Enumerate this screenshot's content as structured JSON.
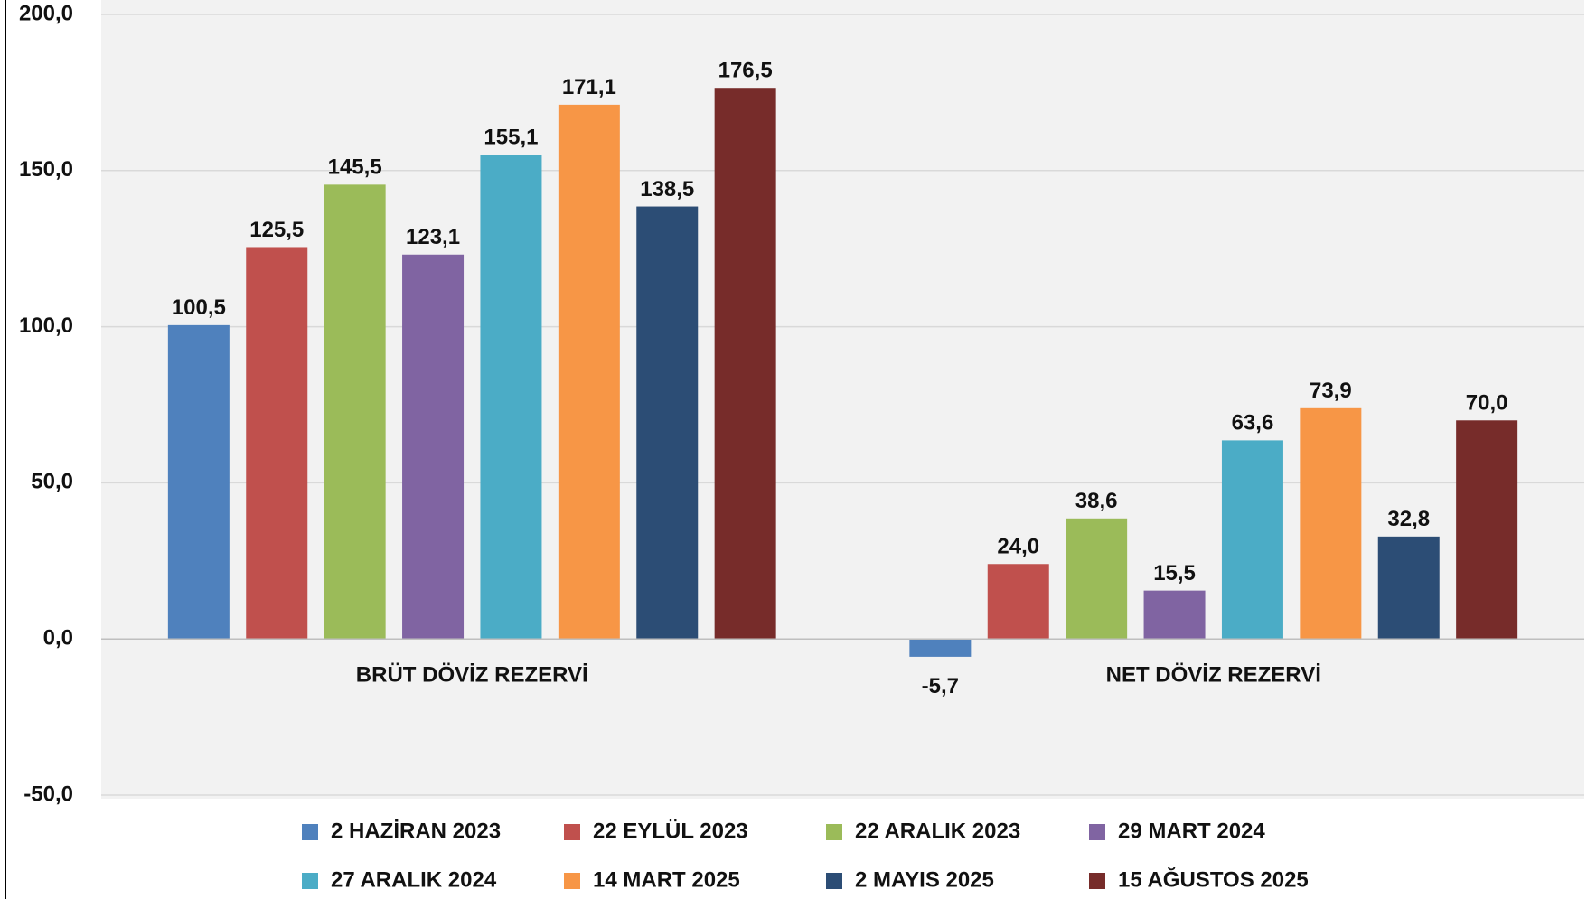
{
  "chart_data": {
    "type": "bar",
    "categories": [
      "BRÜT DÖVİZ REZERVİ",
      "NET DÖVİZ REZERVİ"
    ],
    "series": [
      {
        "name": "2 HAZİRAN 2023",
        "color": "#4f81bd",
        "values": [
          100.5,
          -5.7
        ],
        "value_labels": [
          "100,5",
          "-5,7"
        ]
      },
      {
        "name": "22 EYLÜL 2023",
        "color": "#c0504d",
        "values": [
          125.5,
          24.0
        ],
        "value_labels": [
          "125,5",
          "24,0"
        ]
      },
      {
        "name": "22 ARALIK 2023",
        "color": "#9bbb59",
        "values": [
          145.5,
          38.6
        ],
        "value_labels": [
          "145,5",
          "38,6"
        ]
      },
      {
        "name": "29 MART 2024",
        "color": "#8064a2",
        "values": [
          123.1,
          15.5
        ],
        "value_labels": [
          "123,1",
          "15,5"
        ]
      },
      {
        "name": "27 ARALIK 2024",
        "color": "#4bacc6",
        "values": [
          155.1,
          63.6
        ],
        "value_labels": [
          "155,1",
          "63,6"
        ]
      },
      {
        "name": "14 MART  2025",
        "color": "#f79646",
        "values": [
          171.1,
          73.9
        ],
        "value_labels": [
          "171,1",
          "73,9"
        ]
      },
      {
        "name": "2 MAYIS 2025",
        "color": "#2c4d75",
        "values": [
          138.5,
          32.8
        ],
        "value_labels": [
          "138,5",
          "32,8"
        ]
      },
      {
        "name": "15 AĞUSTOS  2025",
        "color": "#772c2a",
        "values": [
          176.5,
          70.0
        ],
        "value_labels": [
          "176,5",
          "70,0"
        ]
      }
    ],
    "ylim": [
      -50,
      200
    ],
    "yticks": [
      {
        "value": -50,
        "label": "-50,0"
      },
      {
        "value": 0,
        "label": "0,0"
      },
      {
        "value": 50,
        "label": "50,0"
      },
      {
        "value": 100,
        "label": "100,0"
      },
      {
        "value": 150,
        "label": "150,0"
      },
      {
        "value": 200,
        "label": "200,0"
      }
    ],
    "grid": true
  }
}
